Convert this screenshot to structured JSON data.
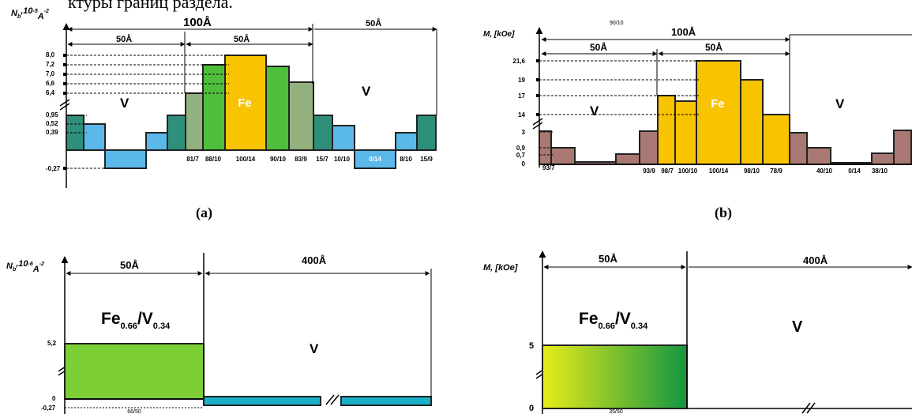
{
  "header_text": "ктуры границ раздела.",
  "panel_a": {
    "ylabel": "N",
    "ylabel_sub": "b",
    "ylabel_tail": ",10",
    "ylabel_exp": "-5",
    "ylabel_unit": "A",
    "ylabel_unit_exp": "-2",
    "label": "(a)",
    "dim_100": "100Å",
    "dim_50_left": "50Å",
    "dim_50_mid": "50Å",
    "dim_50_right": "50Å",
    "fe": "Fe",
    "v_left": "V",
    "v_right": "V",
    "yticks": [
      "8,0",
      "7,2",
      "7,0",
      "6,6",
      "6,4",
      "0,95",
      "0,52",
      "0,39",
      "-0,27"
    ],
    "bar_labels": [
      "81/7",
      "88/10",
      "100/14",
      "90/10",
      "83/9",
      "15/7",
      "10/10",
      "0/14",
      "8/10",
      "15/9"
    ]
  },
  "panel_b": {
    "ylabel": "M, [kOe]",
    "label": "(b)",
    "top_small": "90/10",
    "dim_100": "100Å",
    "dim_50_left": "50Å",
    "dim_50_mid": "50Å",
    "fe": "Fe",
    "v_left": "V",
    "v_right": "V",
    "yticks": [
      "21,6",
      "19",
      "17",
      "14",
      "3",
      "0,9",
      "0,7",
      "0"
    ],
    "bar_labels": [
      "93/7",
      "93/9",
      "98/7",
      "100/10",
      "100/14",
      "98/10",
      "78/9",
      "40/10",
      "0/14",
      "38/10"
    ]
  },
  "panel_c": {
    "ylabel": "N",
    "ylabel_sub": "b",
    "ylabel_tail": ",10",
    "ylabel_exp": "-6",
    "ylabel_unit": "A",
    "ylabel_unit_exp": "-2",
    "dim_50": "50Å",
    "dim_400": "400Å",
    "alloy_fe": "Fe",
    "alloy_fe_sub": "0.66",
    "alloy_v": "/V",
    "alloy_v_sub": "0.34",
    "v_label": "V",
    "yticks": [
      "5,2",
      "0",
      "-0,27"
    ],
    "bottom_label": "66/50"
  },
  "panel_d": {
    "ylabel": "M, [kOe]",
    "dim_50": "50Å",
    "dim_400": "400Å",
    "alloy_fe": "Fe",
    "alloy_fe_sub": "0.66",
    "alloy_v": "/V",
    "alloy_v_sub": "0.34",
    "v_label": "V",
    "yticks": [
      "5",
      "0"
    ],
    "bottom_label": "35/50"
  },
  "colors": {
    "fe_yellow": "#f8c300",
    "green_light": "#7ccf35",
    "green_mid": "#4fbe3a",
    "green_gray": "#93b07f",
    "teal_dark": "#2e8f7a",
    "blue_light": "#5ab8ea",
    "brown": "#a97872",
    "cyan_bar": "#1ab0c8",
    "gradient_start": "#e8ec1a",
    "gradient_end": "#139640"
  }
}
